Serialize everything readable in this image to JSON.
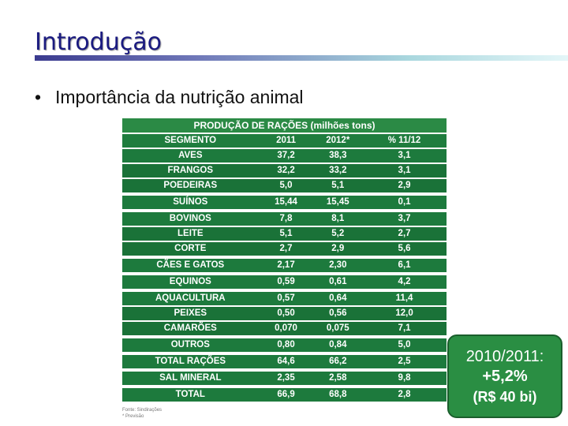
{
  "slide": {
    "title": "Introdução",
    "bullet": "Importância da nutrição animal"
  },
  "table": {
    "caption": "PRODUÇÃO DE RAÇÕES (milhões tons)",
    "headers": [
      "SEGMENTO",
      "2011",
      "2012*",
      "% 11/12"
    ],
    "rows": [
      {
        "segment": "AVES",
        "y2011": "37,2",
        "y2012": "38,3",
        "pct": "3,1"
      },
      {
        "segment": "FRANGOS",
        "y2011": "32,2",
        "y2012": "33,2",
        "pct": "3,1"
      },
      {
        "segment": "POEDEIRAS",
        "y2011": "5,0",
        "y2012": "5,1",
        "pct": "2,9"
      },
      {
        "segment": "SUÍNOS",
        "y2011": "15,44",
        "y2012": "15,45",
        "pct": "0,1"
      },
      {
        "segment": "BOVINOS",
        "y2011": "7,8",
        "y2012": "8,1",
        "pct": "3,7"
      },
      {
        "segment": "LEITE",
        "y2011": "5,1",
        "y2012": "5,2",
        "pct": "2,7"
      },
      {
        "segment": "CORTE",
        "y2011": "2,7",
        "y2012": "2,9",
        "pct": "5,6"
      },
      {
        "segment": "CÃES E GATOS",
        "y2011": "2,17",
        "y2012": "2,30",
        "pct": "6,1"
      },
      {
        "segment": "EQUINOS",
        "y2011": "0,59",
        "y2012": "0,61",
        "pct": "4,2"
      },
      {
        "segment": "AQUACULTURA",
        "y2011": "0,57",
        "y2012": "0,64",
        "pct": "11,4"
      },
      {
        "segment": "PEIXES",
        "y2011": "0,50",
        "y2012": "0,56",
        "pct": "12,0"
      },
      {
        "segment": "CAMARÕES",
        "y2011": "0,070",
        "y2012": "0,075",
        "pct": "7,1"
      },
      {
        "segment": "OUTROS",
        "y2011": "0,80",
        "y2012": "0,84",
        "pct": "5,0"
      },
      {
        "segment": "TOTAL RAÇÕES",
        "y2011": "64,6",
        "y2012": "66,2",
        "pct": "2,5"
      },
      {
        "segment": "SAL MINERAL",
        "y2011": "2,35",
        "y2012": "2,58",
        "pct": "9,8"
      },
      {
        "segment": "TOTAL",
        "y2011": "66,9",
        "y2012": "68,8",
        "pct": "2,8"
      }
    ],
    "source_lines": [
      "Fonte: Sindirações",
      "* Previsão"
    ]
  },
  "callout": {
    "line1": "2010/2011:",
    "line2": "+5,2%",
    "line3": "(R$ 40 bi)"
  }
}
